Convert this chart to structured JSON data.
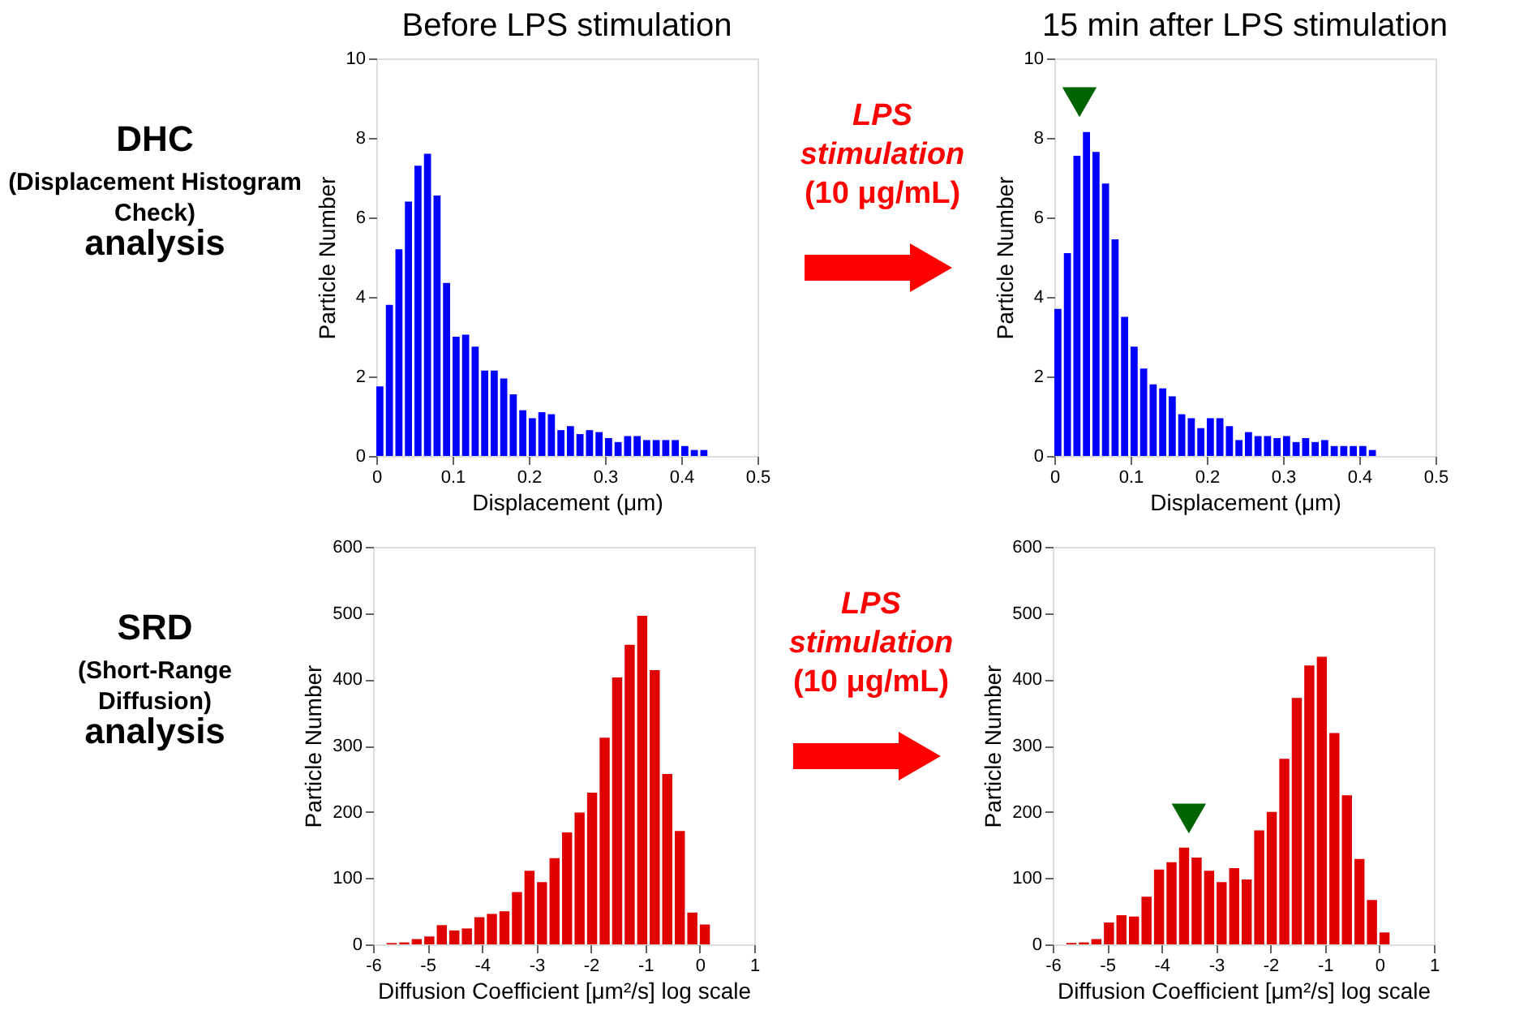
{
  "chart_data": [
    {
      "type": "other",
      "annotations": [
        "DHC",
        "(Displacement Histogram Check)",
        "analysis"
      ]
    },
    {
      "type": "histogram",
      "title": "Before LPS stimulation",
      "xlabel": "Displacement (μm)",
      "ylabel": "Particle Number",
      "color": "#0000ff",
      "bins": [
        0,
        0.0125,
        0.025,
        0.0375,
        0.05,
        0.0625,
        0.075,
        0.0875,
        0.1,
        0.1125,
        0.125,
        0.1375,
        0.15,
        0.1625,
        0.175,
        0.1875,
        0.2,
        0.2125,
        0.225,
        0.2375,
        0.25,
        0.2625,
        0.275,
        0.2875,
        0.3,
        0.3125,
        0.325,
        0.3375,
        0.35,
        0.3625,
        0.375,
        0.3875,
        0.4,
        0.4125,
        0.425,
        0.4375
      ],
      "values": [
        1.75,
        3.8,
        5.2,
        6.4,
        7.3,
        7.6,
        6.55,
        4.35,
        3.0,
        3.05,
        2.75,
        2.15,
        2.15,
        1.95,
        1.55,
        1.15,
        0.95,
        1.1,
        1.05,
        0.65,
        0.75,
        0.55,
        0.65,
        0.6,
        0.45,
        0.35,
        0.5,
        0.5,
        0.4,
        0.4,
        0.4,
        0.4,
        0.25,
        0.15,
        0.15
      ],
      "xlim": [
        0,
        0.5
      ],
      "xticks": [
        0,
        0.1,
        0.2,
        0.3,
        0.4,
        0.5
      ],
      "ylim": [
        0,
        10
      ],
      "yticks": [
        0,
        2,
        4,
        6,
        8,
        10
      ]
    },
    {
      "type": "other",
      "annotations": [
        "LPS stimulation",
        "(10 μg/mL)"
      ]
    },
    {
      "type": "histogram",
      "title": "15 min after LPS stimulation",
      "xlabel": "Displacement (μm)",
      "ylabel": "Particle Number",
      "color": "#0000ff",
      "bins": [
        0,
        0.0125,
        0.025,
        0.0375,
        0.05,
        0.0625,
        0.075,
        0.0875,
        0.1,
        0.1125,
        0.125,
        0.1375,
        0.15,
        0.1625,
        0.175,
        0.1875,
        0.2,
        0.2125,
        0.225,
        0.2375,
        0.25,
        0.2625,
        0.275,
        0.2875,
        0.3,
        0.3125,
        0.325,
        0.3375,
        0.35,
        0.3625,
        0.375,
        0.3875,
        0.4,
        0.4125,
        0.425
      ],
      "values": [
        3.7,
        5.1,
        7.55,
        8.15,
        7.65,
        6.85,
        5.45,
        3.5,
        2.75,
        2.2,
        1.8,
        1.7,
        1.5,
        1.05,
        0.95,
        0.7,
        0.95,
        0.95,
        0.75,
        0.4,
        0.6,
        0.5,
        0.5,
        0.45,
        0.5,
        0.35,
        0.45,
        0.35,
        0.4,
        0.25,
        0.25,
        0.25,
        0.25,
        0.15
      ],
      "series": [
        {
          "type": "scatter",
          "marker": "triangle",
          "color": "#006400",
          "x": [
            0.033
          ],
          "values": [
            8.9
          ]
        }
      ],
      "xlim": [
        0,
        0.5
      ],
      "xticks": [
        0,
        0.1,
        0.2,
        0.3,
        0.4,
        0.5
      ],
      "ylim": [
        0,
        10
      ],
      "yticks": [
        0,
        2,
        4,
        6,
        8,
        10
      ]
    },
    {
      "type": "other",
      "annotations": [
        "SRD",
        "(Short-Range Diffusion)",
        "analysis"
      ]
    },
    {
      "type": "histogram",
      "xlabel": "Diffusion Coefficient [μm²/s] log scale",
      "ylabel": "Particle Number",
      "color": "#e00000",
      "bins": [
        -5.75,
        -5.52,
        -5.29,
        -5.06,
        -4.83,
        -4.6,
        -4.37,
        -4.14,
        -3.91,
        -3.68,
        -3.45,
        -3.22,
        -2.99,
        -2.76,
        -2.53,
        -2.3,
        -2.07,
        -1.84,
        -1.61,
        -1.38,
        -1.15,
        -0.92,
        -0.69,
        -0.46,
        -0.23,
        0,
        0.23
      ],
      "values": [
        2,
        3,
        8,
        12,
        29,
        21,
        24,
        41,
        46,
        50,
        79,
        111,
        94,
        130,
        169,
        199,
        229,
        312,
        403,
        452,
        496,
        414,
        257,
        171,
        48,
        30
      ],
      "xlim": [
        -6,
        1
      ],
      "xticks": [
        -6,
        -5,
        -4,
        -3,
        -2,
        -1,
        0,
        1
      ],
      "ylim": [
        0,
        600
      ],
      "yticks": [
        0,
        100,
        200,
        300,
        400,
        500,
        600
      ]
    },
    {
      "type": "other",
      "annotations": [
        "LPS stimulation",
        "(10 μg/mL)"
      ]
    },
    {
      "type": "histogram",
      "xlabel": "Diffusion Coefficient [μm²/s] log scale",
      "ylabel": "Particle Number",
      "color": "#e00000",
      "bins": [
        -5.75,
        -5.52,
        -5.29,
        -5.06,
        -4.83,
        -4.6,
        -4.37,
        -4.14,
        -3.91,
        -3.68,
        -3.45,
        -3.22,
        -2.99,
        -2.76,
        -2.53,
        -2.3,
        -2.07,
        -1.84,
        -1.61,
        -1.38,
        -1.15,
        -0.92,
        -0.69,
        -0.46,
        -0.23,
        0,
        0.23
      ],
      "values": [
        2,
        3,
        8,
        33,
        44,
        42,
        72,
        113,
        124,
        146,
        131,
        111,
        94,
        115,
        98,
        172,
        200,
        280,
        372,
        421,
        434,
        319,
        225,
        129,
        67,
        18
      ],
      "series": [
        {
          "type": "scatter",
          "marker": "triangle",
          "color": "#006400",
          "x": [
            -3.5
          ],
          "values": [
            190
          ]
        }
      ],
      "xlim": [
        -6,
        1
      ],
      "xticks": [
        -6,
        -5,
        -4,
        -3,
        -2,
        -1,
        0,
        1
      ],
      "ylim": [
        0,
        600
      ],
      "yticks": [
        0,
        100,
        200,
        300,
        400,
        500,
        600
      ]
    }
  ]
}
